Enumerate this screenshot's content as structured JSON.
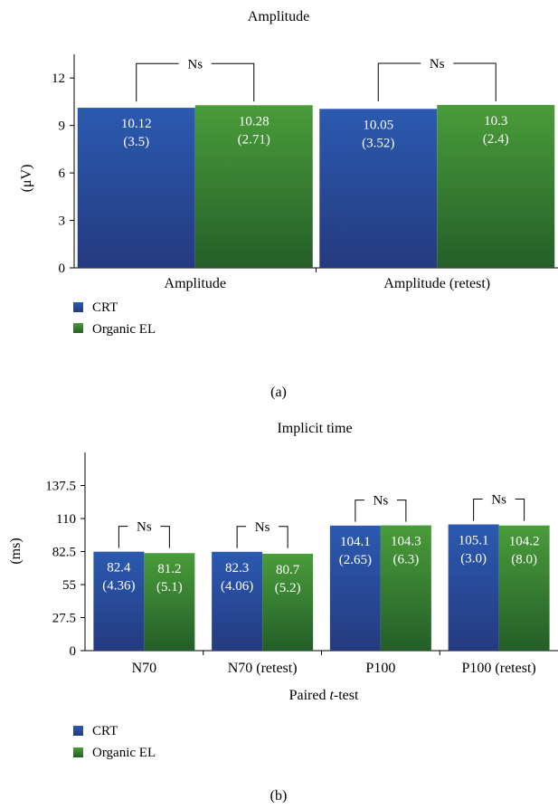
{
  "colors": {
    "crt_top": "#2b5ab0",
    "crt_bottom": "#253a80",
    "oel_top": "#4a9c3a",
    "oel_bottom": "#235e28",
    "axis": "#000000",
    "label_text": "#ffffff"
  },
  "chart_data": [
    {
      "type": "bar",
      "panel_label": "(a)",
      "title": "Amplitude",
      "ylabel": "(μV)",
      "xlabel": "",
      "ylim": [
        0,
        13.5
      ],
      "yticks": [
        "0",
        "3",
        "6",
        "9",
        "12"
      ],
      "categories": [
        "Amplitude",
        "Amplitude (retest)"
      ],
      "series": [
        {
          "name": "CRT",
          "values": [
            10.12,
            10.05
          ],
          "labels": [
            "10.12",
            "10.05"
          ],
          "sd_labels": [
            "(3.5)",
            "(3.52)"
          ]
        },
        {
          "name": "Organic EL",
          "values": [
            10.28,
            10.3
          ],
          "labels": [
            "10.28",
            "10.3"
          ],
          "sd_labels": [
            "(2.71)",
            "(2.4)"
          ]
        }
      ],
      "significance": [
        "Ns",
        "Ns"
      ],
      "legend": {
        "position": "bottom-left",
        "entries": [
          "CRT",
          "Organic EL"
        ]
      },
      "grid": false
    },
    {
      "type": "bar",
      "panel_label": "(b)",
      "title": "Implicit time",
      "ylabel": "(ms)",
      "xlabel_prefix": "Paired ",
      "xlabel_italic": "t",
      "xlabel_suffix": "-test",
      "ylim": [
        0,
        165
      ],
      "yticks": [
        "0",
        "27.5",
        "55",
        "82.5",
        "110",
        "137.5"
      ],
      "categories": [
        "N70",
        "N70 (retest)",
        "P100",
        "P100  (retest)"
      ],
      "series": [
        {
          "name": "CRT",
          "values": [
            82.4,
            82.3,
            104.1,
            105.1
          ],
          "labels": [
            "82.4",
            "82.3",
            "104.1",
            "105.1"
          ],
          "sd_labels": [
            "(4.36)",
            "(4.06)",
            "(2.65)",
            "(3.0)"
          ]
        },
        {
          "name": "Organic EL",
          "values": [
            81.2,
            80.7,
            104.3,
            104.2
          ],
          "labels": [
            "81.2",
            "80.7",
            "104.3",
            "104.2"
          ],
          "sd_labels": [
            "(5.1)",
            "(5.2)",
            "(6.3)",
            "(8.0)"
          ]
        }
      ],
      "significance": [
        "Ns",
        "Ns",
        "Ns",
        "Ns"
      ],
      "legend": {
        "position": "bottom-left",
        "entries": [
          "CRT",
          "Organic EL"
        ]
      },
      "grid": false
    }
  ]
}
